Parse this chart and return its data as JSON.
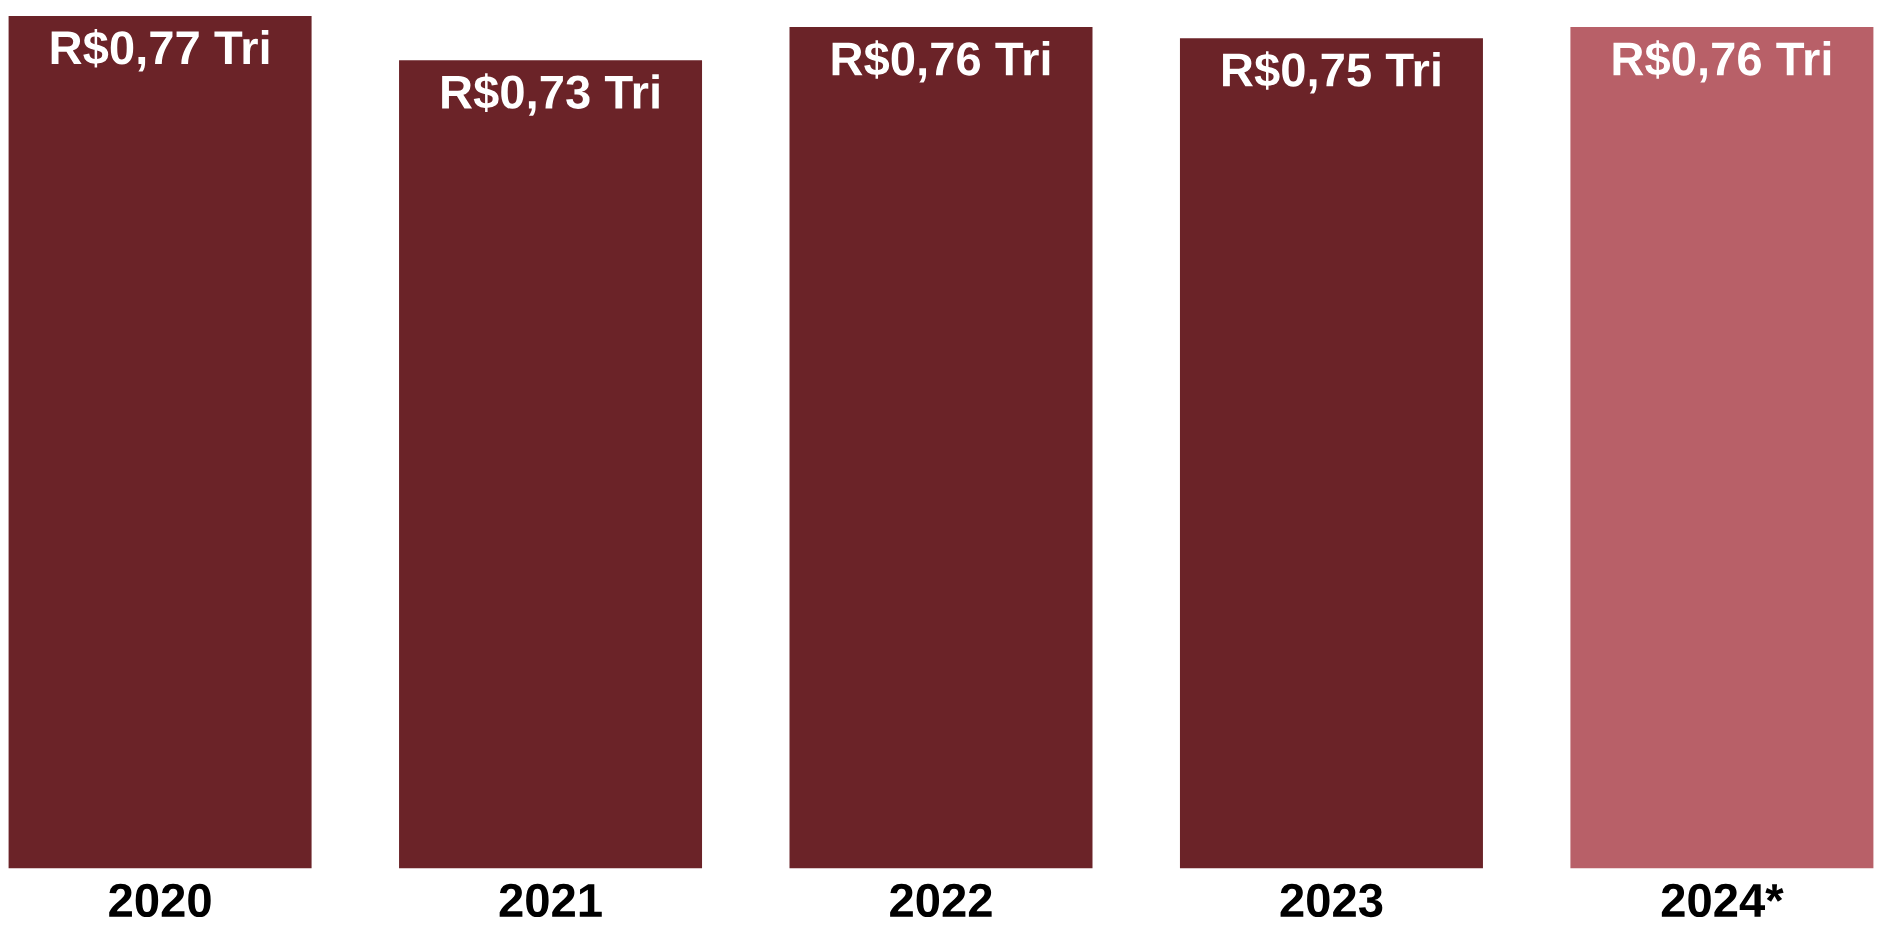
{
  "chart_data": {
    "type": "bar",
    "categories": [
      "2020",
      "2021",
      "2022",
      "2023",
      "2024*"
    ],
    "values": [
      0.77,
      0.73,
      0.76,
      0.75,
      0.76
    ],
    "colors": [
      "#6b2328",
      "#6b2328",
      "#6b2328",
      "#6b2328",
      "#b86068"
    ],
    "value_labels": [
      "R$0,77 Tri",
      "R$0,73 Tri",
      "R$0,76 Tri",
      "R$0,75 Tri",
      "R$0,76 Tri"
    ],
    "grid": false,
    "legend": false
  }
}
